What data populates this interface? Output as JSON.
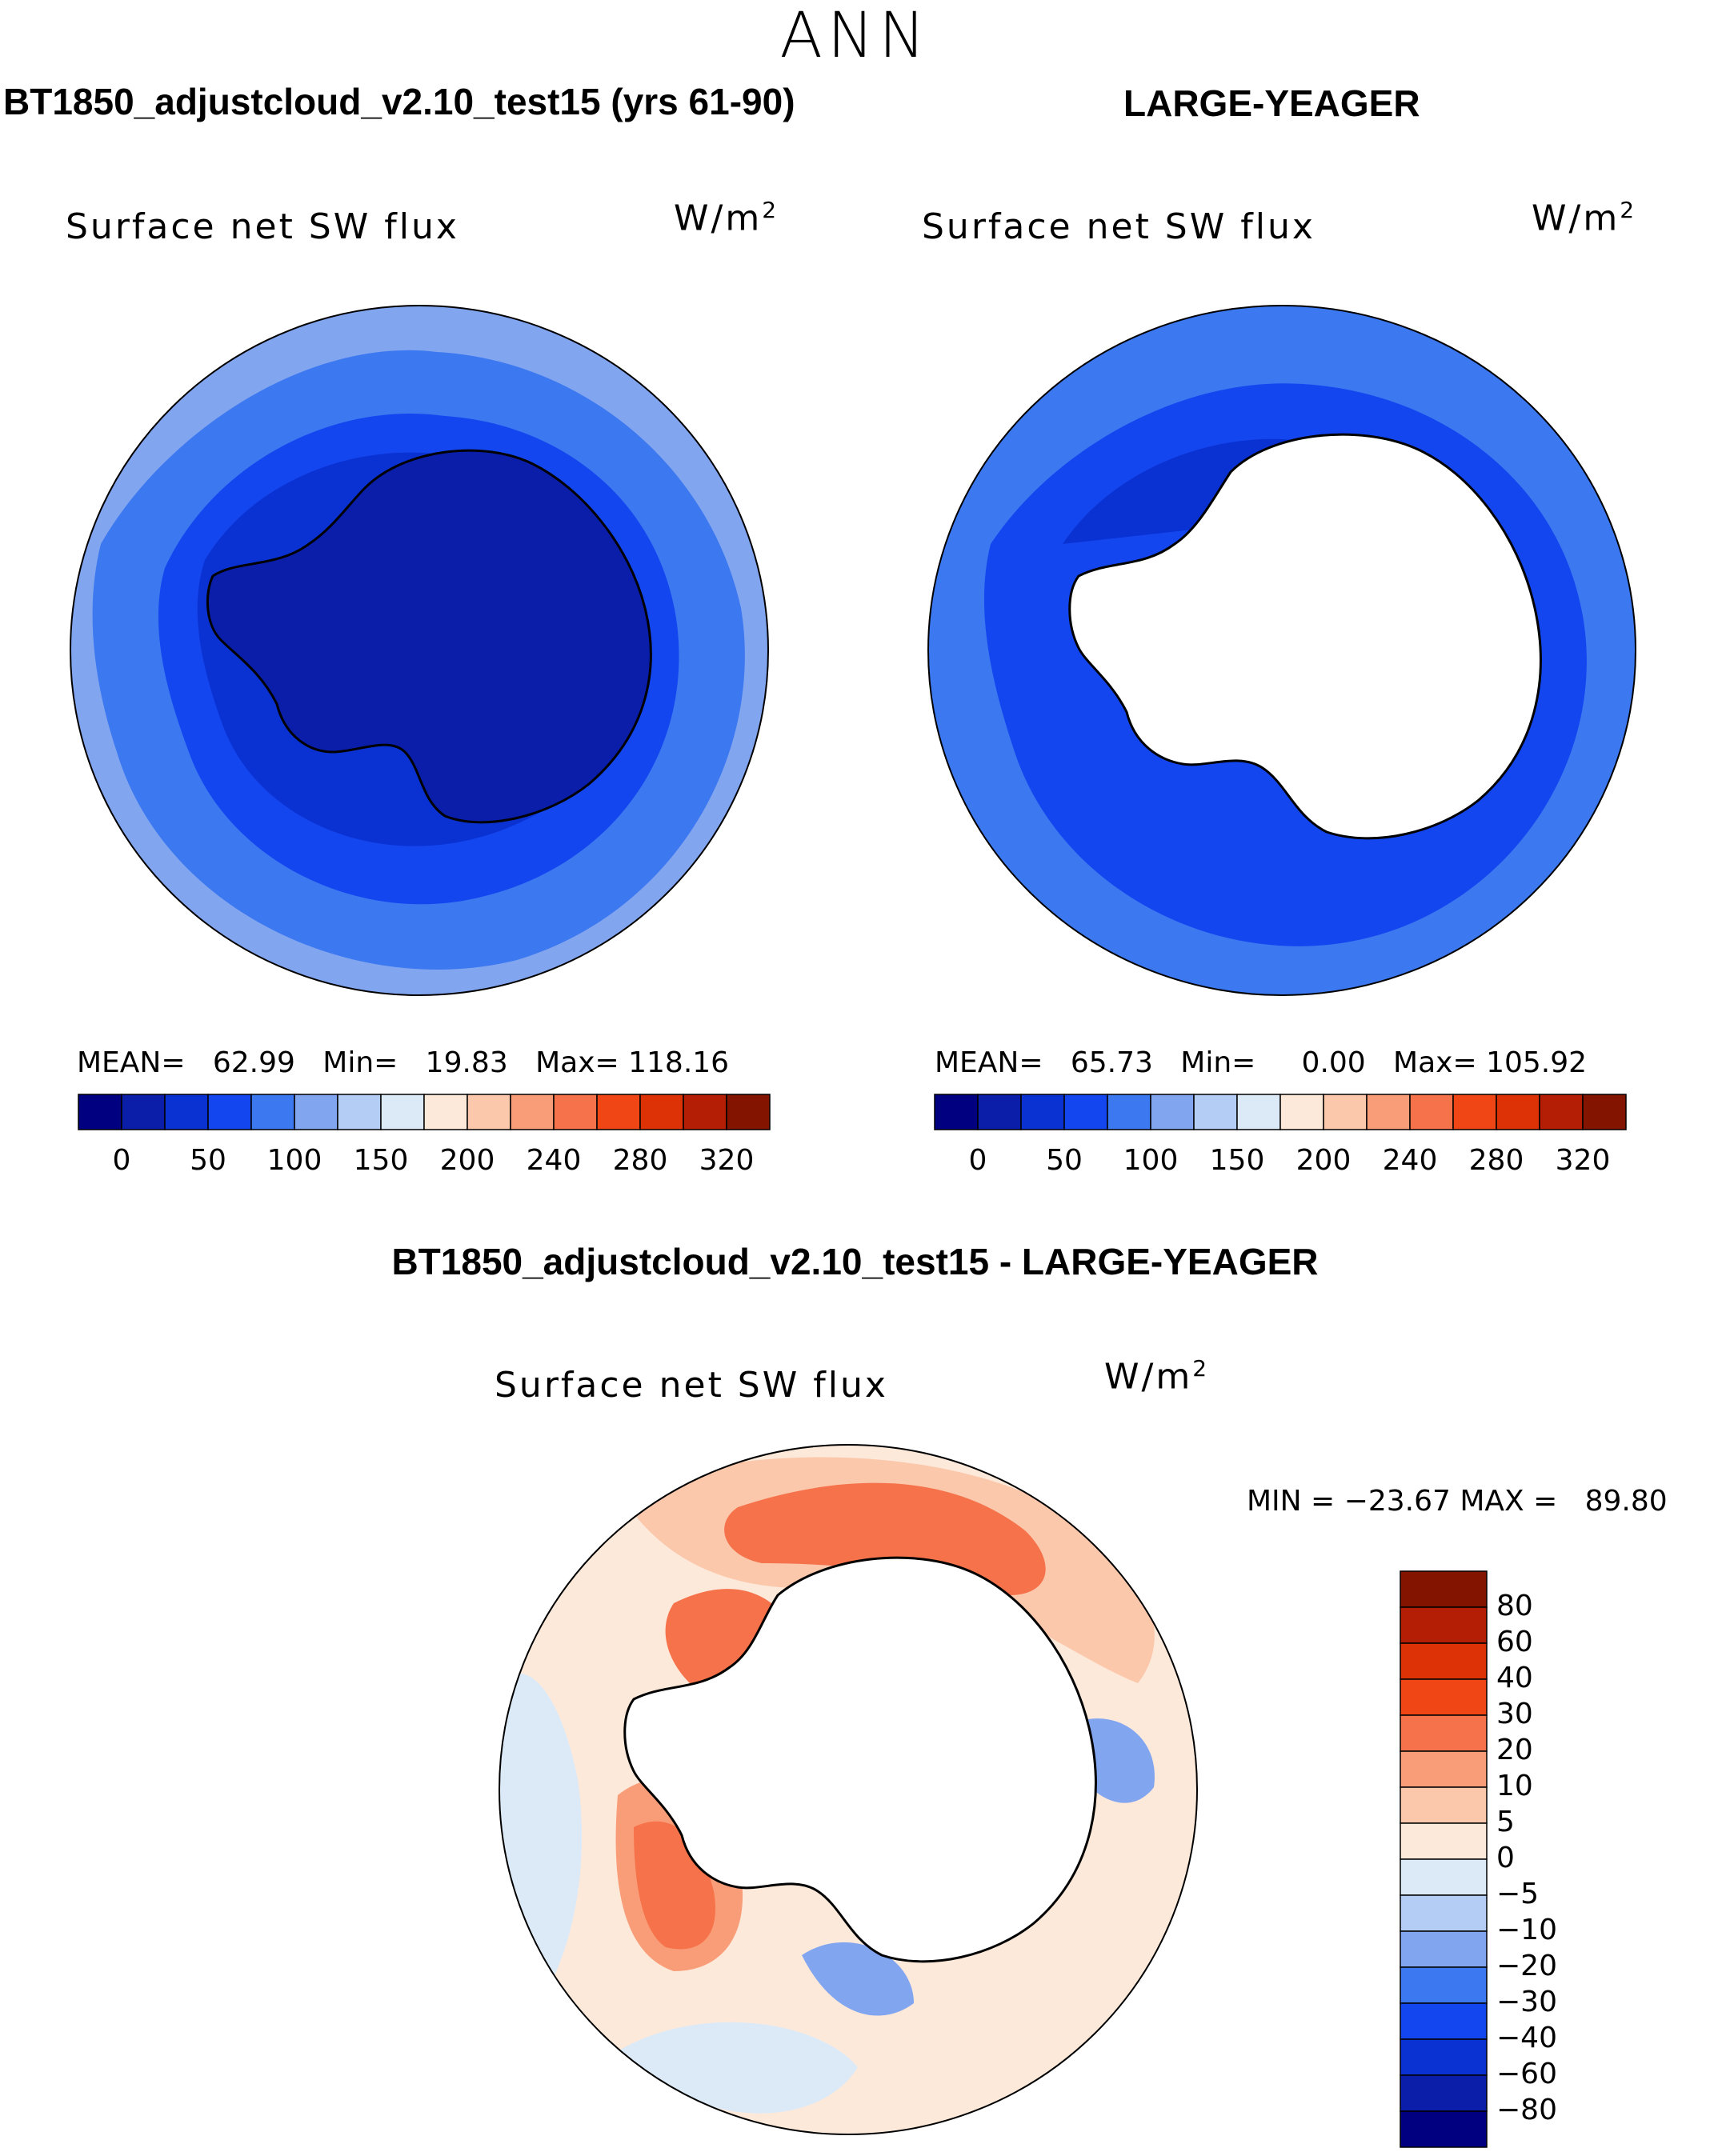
{
  "season": "ANN",
  "units": "W/m",
  "units_exp": "2",
  "panels": [
    {
      "title": "BT1850_adjustcloud_v2.10_test15 (yrs 61-90)",
      "variable": "Surface net SW flux",
      "stats": {
        "mean_label": "MEAN=",
        "mean": "62.99",
        "min_label": "Min=",
        "min": "19.83",
        "max_label": "Max=",
        "max": "118.16"
      }
    },
    {
      "title": "LARGE-YEAGER",
      "variable": "Surface net SW flux",
      "stats": {
        "mean_label": "MEAN=",
        "mean": "65.73",
        "min_label": "Min=",
        "min": "0.00",
        "max_label": "Max=",
        "max": "105.92"
      }
    },
    {
      "title": "BT1850_adjustcloud_v2.10_test15 - LARGE-YEAGER",
      "variable": "Surface net SW flux",
      "stats_text": "MIN = −23.67 MAX =   89.80"
    }
  ],
  "colorbar_abs": {
    "colors": [
      "#000080",
      "#0a1eaa",
      "#0a32d2",
      "#1446f0",
      "#3c78f0",
      "#82a5f0",
      "#b4cdf5",
      "#dceaf8",
      "#fde9da",
      "#fbc8ac",
      "#f99d78",
      "#f5724a",
      "#f04616",
      "#dc3205",
      "#b41e05",
      "#821400"
    ],
    "ticks": [
      "0",
      "50",
      "100",
      "150",
      "200",
      "240",
      "280",
      "320"
    ]
  },
  "colorbar_diff": {
    "colors_top_to_bottom": [
      "#821400",
      "#b41e05",
      "#dc3205",
      "#f04616",
      "#f5724a",
      "#f99d78",
      "#fbc8ac",
      "#fde9da",
      "#dceaf8",
      "#b4cdf5",
      "#82a5f0",
      "#3c78f0",
      "#1446f0",
      "#0a32d2",
      "#0a1eaa",
      "#000080"
    ],
    "ticks": [
      "80",
      "60",
      "40",
      "30",
      "20",
      "10",
      "5",
      "0",
      "−5",
      "−10",
      "−20",
      "−30",
      "−40",
      "−60",
      "−80"
    ]
  },
  "map_colors": {
    "ocean_outer": "#82a5f0",
    "ocean_mid": "#3c78f0",
    "ocean_inner": "#1446f0",
    "ocean_deep": "#0a32d2",
    "land_dark": "#0a1eaa",
    "diff_pale": "#fde9da",
    "diff_light": "#fbc8ac",
    "diff_mid": "#f99d78",
    "diff_strong": "#f5724a",
    "diff_blue_pale": "#dceaf8",
    "diff_blue": "#82a5f0"
  }
}
